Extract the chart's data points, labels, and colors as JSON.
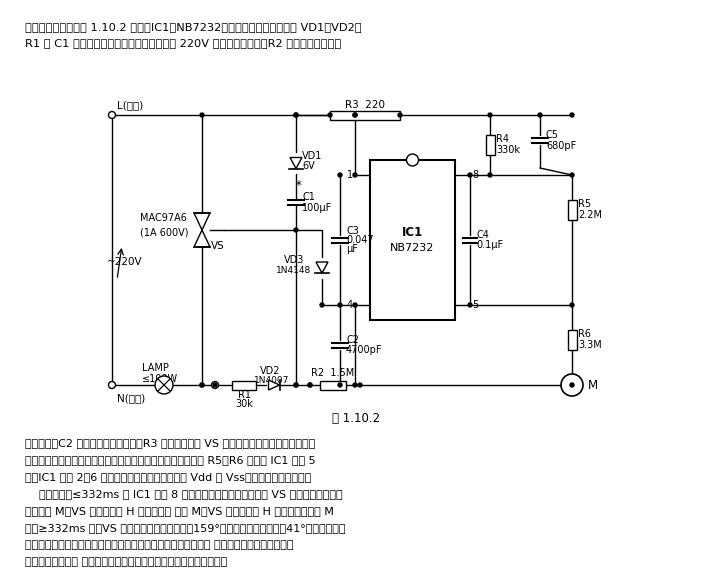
{
  "title": "图 1.10.2",
  "header1": "本制作的电路图如图 1.10.2 所示。IC1（NB7232）使用的直流电源直接由 VD1、VD2、",
  "header2": "R1 与 C1 组成电阵降压半波整流稳压电路从 220V 交流市电中获取。R2 用于从市电中截取",
  "footer": [
    "过零信号。C2 用于滤除尖脉冲干扰。R3 为双向晶闸管 VS 控制极的限流电阵器。人体触摸",
    "信号（与市电同频率的微弱交流电泄露信号）通过保安电阵器 R5、R6 输入到 IC1 的第 5",
    "脚。IC1 的第 2、6 脚功能尚未利用，这里分别接 Vdd 和 Vss，以免悬空产生干扰。",
    "    当手触时间≤332ms 时 IC1 的第 8 脚输出信号仅控制双向晶闸管 VS 完成开关任务，即",
    "触摸一下 M、VS 导通，电灯 H 亮；再触摸 一下 M、VS 截止，电灯 H 灯。当人手触摸 M",
    "时间≥332ms 时，VS 移相调光，灯光由最亮（159°）逐渐变暗直到微亮（41°），又逐渐向",
    "最亮变化，周期往复。人手触摸停止，则灯光不再变化而保持这 一瞬间的亮度。下次再开启",
    "电灯时仍起始于这 一亮度，但灯光亮度变化方向与上次调光时相反。"
  ],
  "bg_color": "#ffffff",
  "lc": "#000000",
  "tc": "#000000"
}
